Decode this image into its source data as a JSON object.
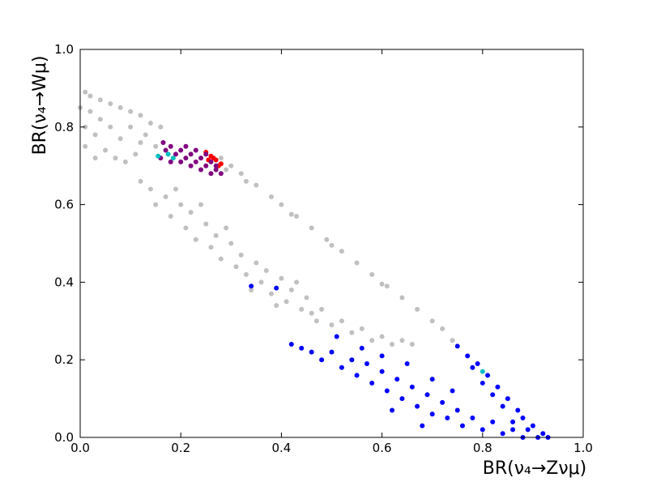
{
  "chart_data": {
    "type": "scatter",
    "xlabel": "BR(ν₄→Zνμ)",
    "ylabel": "BR(ν₄→Wμ)",
    "xlim": [
      0,
      1
    ],
    "ylim": [
      0,
      1
    ],
    "xticks": [
      {
        "value": 0,
        "label": "0.0"
      },
      0.2,
      0.4,
      0.6,
      0.8,
      {
        "value": 1,
        "label": "1.0"
      }
    ],
    "yticks": [
      {
        "value": 0,
        "label": "0.0"
      },
      0.2,
      0.4,
      0.6,
      0.8,
      {
        "value": 1,
        "label": "1.0"
      }
    ],
    "series": [
      {
        "color": "#c0c0c0",
        "x": [
          0.01,
          0.02,
          0.04,
          0.06,
          0.08,
          0.1,
          0.12,
          0.14,
          0.16,
          0.28,
          0.3,
          0.32,
          0.35,
          0.38,
          0.4,
          0.43,
          0.46,
          0.49,
          0.52,
          0.55,
          0.58,
          0.61,
          0.64,
          0.67,
          0.7,
          0.72,
          0.74,
          0.29,
          0.33,
          0.42,
          0.5,
          0.6,
          0.01,
          0.01,
          0.02,
          0.03,
          0.04,
          0.05,
          0.06,
          0.08,
          0.1,
          0.12,
          0.07,
          0.09,
          0.11,
          0.13,
          0.15,
          0.03,
          0,
          0.12,
          0.14,
          0.15,
          0.17,
          0.18,
          0.2,
          0.21,
          0.22,
          0.23,
          0.25,
          0.26,
          0.27,
          0.28,
          0.3,
          0.31,
          0.32,
          0.33,
          0.35,
          0.36,
          0.37,
          0.38,
          0.4,
          0.41,
          0.42,
          0.44,
          0.45,
          0.47,
          0.48,
          0.5,
          0.52,
          0.54,
          0.56,
          0.58,
          0.6,
          0.62,
          0.64,
          0.66,
          0.24,
          0.19,
          0.29,
          0.34,
          0.43,
          0.39,
          0.46
        ],
        "values": [
          0.89,
          0.88,
          0.87,
          0.86,
          0.85,
          0.84,
          0.83,
          0.81,
          0.8,
          0.72,
          0.7,
          0.68,
          0.65,
          0.62,
          0.6,
          0.57,
          0.54,
          0.51,
          0.48,
          0.45,
          0.42,
          0.39,
          0.36,
          0.33,
          0.3,
          0.28,
          0.25,
          0.69,
          0.66,
          0.575,
          0.495,
          0.395,
          0.75,
          0.8,
          0.84,
          0.78,
          0.82,
          0.74,
          0.8,
          0.77,
          0.8,
          0.76,
          0.72,
          0.71,
          0.73,
          0.78,
          0.75,
          0.72,
          0.85,
          0.66,
          0.64,
          0.6,
          0.62,
          0.57,
          0.6,
          0.54,
          0.58,
          0.51,
          0.55,
          0.49,
          0.52,
          0.46,
          0.5,
          0.44,
          0.47,
          0.42,
          0.45,
          0.4,
          0.43,
          0.37,
          0.41,
          0.35,
          0.38,
          0.33,
          0.36,
          0.3,
          0.33,
          0.29,
          0.3,
          0.27,
          0.28,
          0.25,
          0.26,
          0.24,
          0.25,
          0.24,
          0.6,
          0.64,
          0.54,
          0.38,
          0.4,
          0.34,
          0.32
        ]
      },
      {
        "color": "#ff0000",
        "x": [
          0.25,
          0.26,
          0.27,
          0.28,
          0.265,
          0.275,
          0.255
        ],
        "values": [
          0.735,
          0.725,
          0.715,
          0.705,
          0.72,
          0.7,
          0.715
        ]
      },
      {
        "color": "#800080",
        "x": [
          0.165,
          0.17,
          0.18,
          0.19,
          0.2,
          0.21,
          0.22,
          0.23,
          0.24,
          0.25,
          0.26,
          0.27,
          0.28,
          0.22,
          0.24,
          0.26,
          0.2,
          0.23,
          0.25,
          0.27,
          0.21,
          0.16,
          0.18
        ],
        "values": [
          0.76,
          0.74,
          0.75,
          0.73,
          0.74,
          0.72,
          0.73,
          0.71,
          0.72,
          0.7,
          0.71,
          0.69,
          0.68,
          0.7,
          0.69,
          0.68,
          0.71,
          0.74,
          0.73,
          0.7,
          0.75,
          0.72,
          0.71
        ]
      },
      {
        "color": "#0000ff",
        "x": [
          0.75,
          0.77,
          0.79,
          0.81,
          0.83,
          0.85,
          0.87,
          0.88,
          0.9,
          0.92,
          0.93,
          0.91,
          0.89,
          0.86,
          0.84,
          0.82,
          0.8,
          0.78,
          0.42,
          0.44,
          0.46,
          0.48,
          0.5,
          0.52,
          0.54,
          0.55,
          0.57,
          0.58,
          0.6,
          0.61,
          0.63,
          0.64,
          0.66,
          0.67,
          0.69,
          0.7,
          0.72,
          0.73,
          0.75,
          0.76,
          0.78,
          0.8,
          0.82,
          0.84,
          0.86,
          0.88,
          0.6,
          0.56,
          0.65,
          0.7,
          0.74,
          0.68,
          0.62,
          0.34,
          0.39,
          0.51
        ],
        "values": [
          0.235,
          0.21,
          0.19,
          0.16,
          0.13,
          0.1,
          0.07,
          0.05,
          0.03,
          0.01,
          0,
          0,
          0.02,
          0.04,
          0.08,
          0.11,
          0.14,
          0.18,
          0.24,
          0.23,
          0.22,
          0.2,
          0.22,
          0.18,
          0.2,
          0.16,
          0.19,
          0.14,
          0.17,
          0.12,
          0.15,
          0.1,
          0.13,
          0.08,
          0.11,
          0.06,
          0.09,
          0.05,
          0.07,
          0.03,
          0.05,
          0.02,
          0.04,
          0.01,
          0.02,
          0,
          0.21,
          0.23,
          0.19,
          0.15,
          0.12,
          0.03,
          0.07,
          0.39,
          0.385,
          0.26
        ]
      },
      {
        "color": "#00bfbf",
        "x": [
          0.155,
          0.175,
          0.185,
          0.8
        ],
        "values": [
          0.725,
          0.73,
          0.72,
          0.17
        ]
      }
    ]
  }
}
